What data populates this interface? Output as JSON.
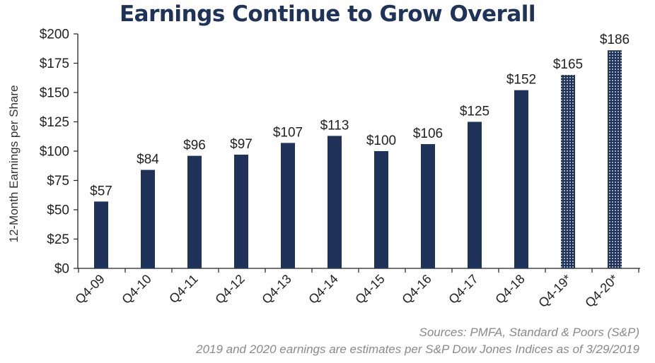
{
  "chart_data": {
    "type": "bar",
    "title": "Earnings Continue to Grow Overall",
    "ylabel": "12-Month Earnings per Share",
    "xlabel": "",
    "ylim": [
      0,
      200
    ],
    "yticks": [
      "$0",
      "$25",
      "$50",
      "$75",
      "$100",
      "$125",
      "$150",
      "$175",
      "$200"
    ],
    "categories": [
      "Q4-09",
      "Q4-10",
      "Q4-11",
      "Q4-12",
      "Q4-13",
      "Q4-14",
      "Q4-15",
      "Q4-16",
      "Q4-17",
      "Q4-18",
      "Q4-19*",
      "Q4-20*"
    ],
    "values": [
      57,
      84,
      96,
      97,
      107,
      113,
      100,
      106,
      125,
      152,
      165,
      186
    ],
    "data_labels": [
      "$57",
      "$84",
      "$96",
      "$97",
      "$107",
      "$113",
      "$100",
      "$106",
      "$125",
      "$152",
      "$165",
      "$186"
    ],
    "estimated": [
      false,
      false,
      false,
      false,
      false,
      false,
      false,
      false,
      false,
      false,
      true,
      true
    ],
    "grid": false,
    "colors": {
      "bar": "#1f3259",
      "estimate_fill": "#ffffff"
    }
  },
  "notes": {
    "sources": "Sources: PMFA, Standard & Poors (S&P)",
    "disclaimer": "2019 and 2020 earnings are estimates per S&P Dow Jones Indices as of 3/29/2019"
  }
}
